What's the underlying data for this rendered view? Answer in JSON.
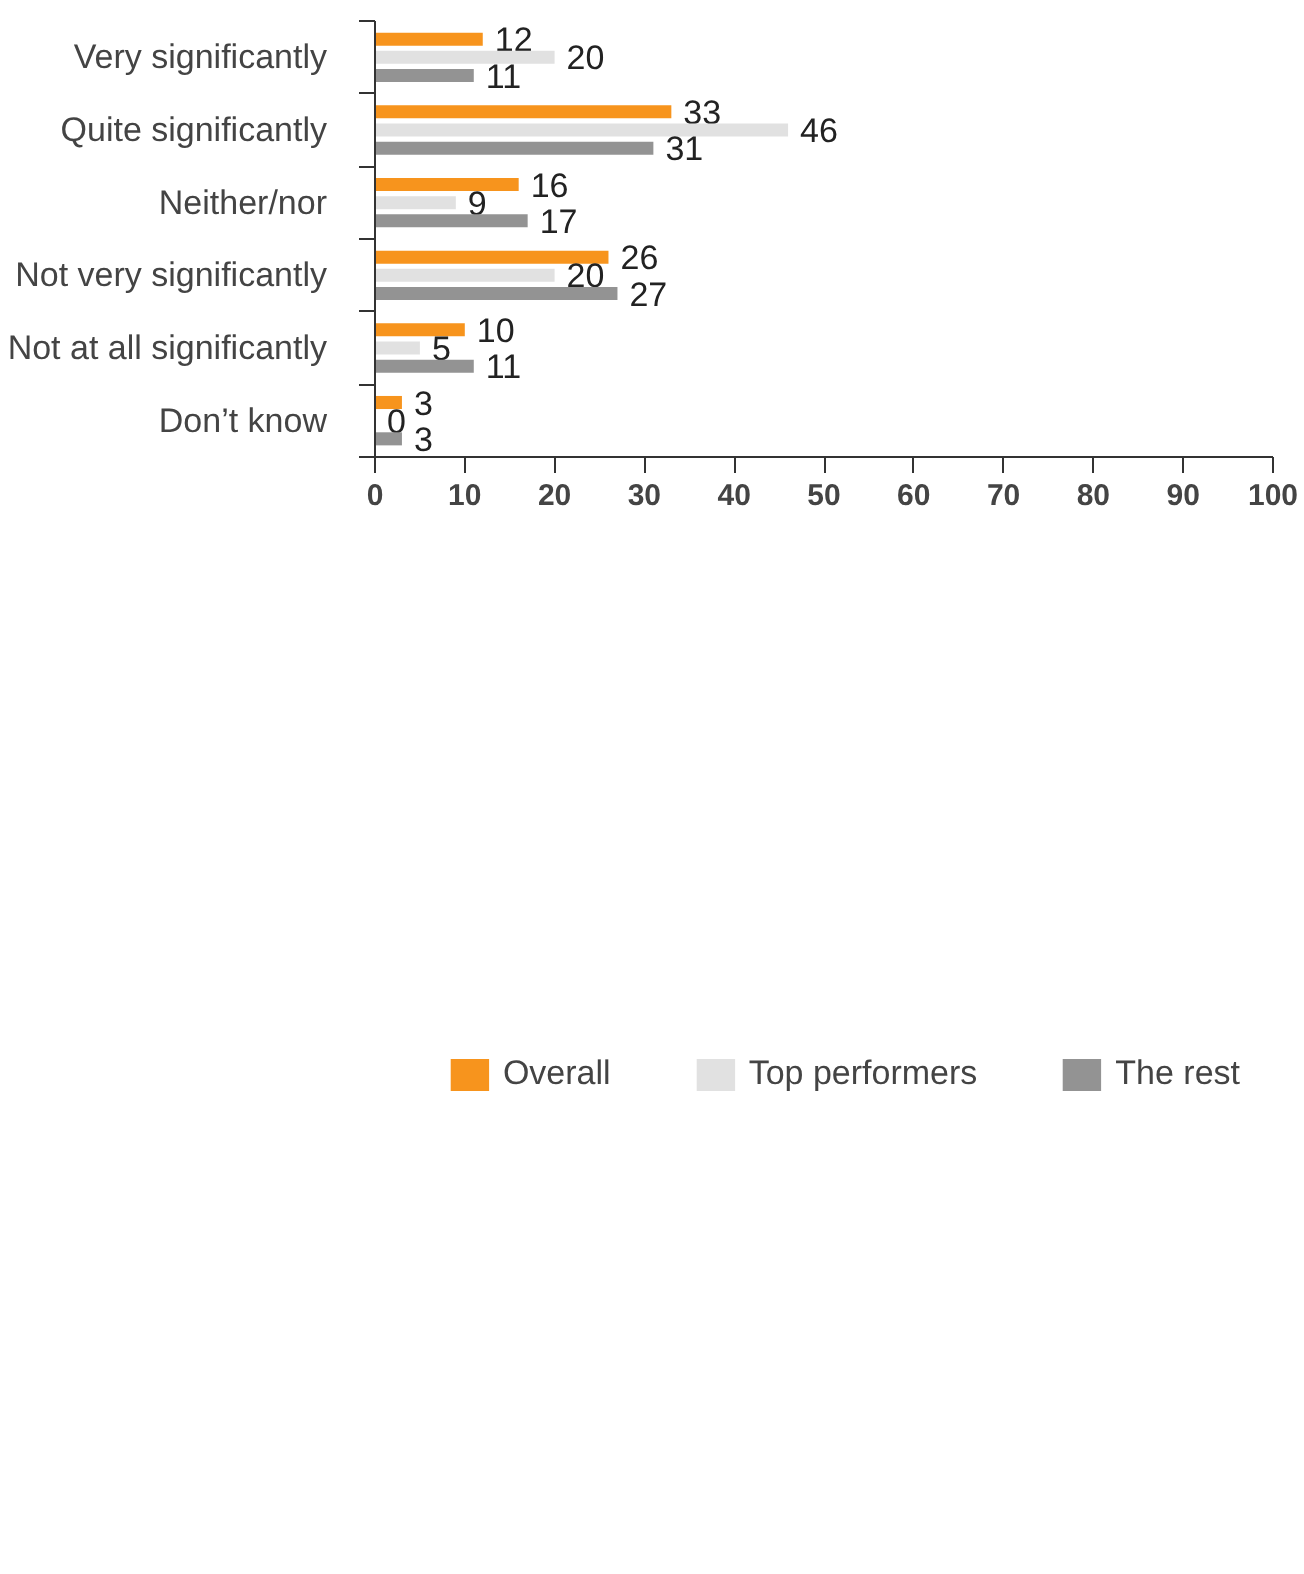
{
  "chart_data": {
    "type": "bar",
    "orientation": "horizontal",
    "categories": [
      "Very significantly",
      "Quite significantly",
      "Neither/nor",
      "Not very significantly",
      "Not at all significantly",
      "Don’t know"
    ],
    "series": [
      {
        "name": "Overall",
        "color": "#f7941d",
        "values": [
          12,
          33,
          16,
          26,
          10,
          3
        ]
      },
      {
        "name": "Top performers",
        "color": "#e1e1e1",
        "values": [
          20,
          46,
          9,
          20,
          5,
          0
        ]
      },
      {
        "name": "The rest",
        "color": "#939393",
        "values": [
          11,
          31,
          17,
          27,
          11,
          3
        ]
      }
    ],
    "xlim": [
      0,
      100
    ],
    "xticks": [
      0,
      10,
      20,
      30,
      40,
      50,
      60,
      70,
      80,
      90,
      100
    ],
    "data_labels": true,
    "grid": false,
    "legend": "bottom"
  }
}
